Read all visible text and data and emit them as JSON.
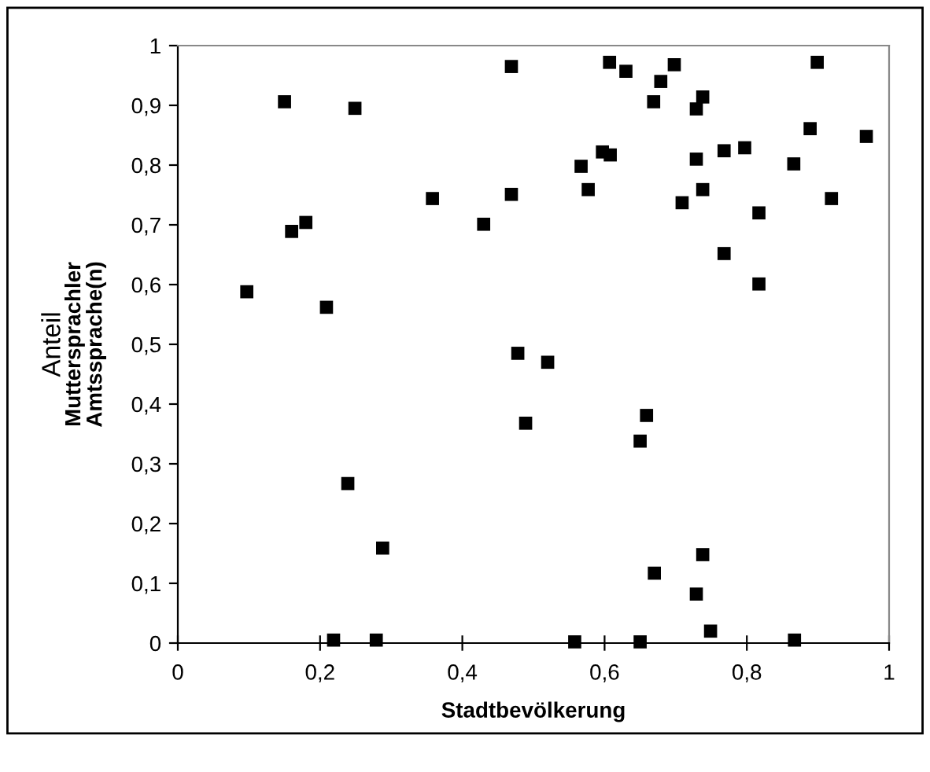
{
  "chart_data": {
    "type": "scatter",
    "xlabel": "Stadtbevölkerung",
    "ylabel": "Anteil\nMuttersprachler\nAmtssprache(n)",
    "x": [
      0.15,
      0.249,
      0.16,
      0.18,
      0.097,
      0.209,
      0.358,
      0.43,
      0.469,
      0.469,
      0.478,
      0.607,
      0.63,
      0.698,
      0.679,
      0.669,
      0.738,
      0.729,
      0.899,
      0.889,
      0.968,
      0.597,
      0.608,
      0.567,
      0.577,
      0.729,
      0.768,
      0.797,
      0.866,
      0.738,
      0.709,
      0.919,
      0.817,
      0.768,
      0.817,
      0.52,
      0.489,
      0.239,
      0.288,
      0.219,
      0.279,
      0.659,
      0.65,
      0.738,
      0.67,
      0.729,
      0.749,
      0.558,
      0.65,
      0.867
    ],
    "values": [
      0.906,
      0.895,
      0.689,
      0.704,
      0.588,
      0.562,
      0.744,
      0.701,
      0.965,
      0.751,
      0.485,
      0.972,
      0.957,
      0.968,
      0.94,
      0.906,
      0.914,
      0.894,
      0.972,
      0.861,
      0.848,
      0.822,
      0.817,
      0.798,
      0.759,
      0.81,
      0.824,
      0.829,
      0.802,
      0.759,
      0.737,
      0.744,
      0.72,
      0.652,
      0.601,
      0.47,
      0.368,
      0.267,
      0.159,
      0.005,
      0.005,
      0.381,
      0.338,
      0.148,
      0.117,
      0.082,
      0.02,
      0.002,
      0.002,
      0.005
    ],
    "color": "#000000",
    "marker": "square",
    "grid": false,
    "legend": false,
    "xlim": [
      0,
      1
    ],
    "ylim": [
      0,
      1
    ],
    "xticks": [
      0,
      {
        "value": 0.2,
        "label": "0,2"
      },
      {
        "value": 0.4,
        "label": "0,4"
      },
      {
        "value": 0.6,
        "label": "0,6"
      },
      {
        "value": 0.8,
        "label": "0,8"
      },
      1
    ],
    "yticks": [
      0,
      {
        "value": 0.1,
        "label": "0,1"
      },
      {
        "value": 0.2,
        "label": "0,2"
      },
      {
        "value": 0.3,
        "label": "0,3"
      },
      {
        "value": 0.4,
        "label": "0,4"
      },
      {
        "value": 0.5,
        "label": "0,5"
      },
      {
        "value": 0.6,
        "label": "0,6"
      },
      {
        "value": 0.7,
        "label": "0,7"
      },
      {
        "value": 0.8,
        "label": "0,8"
      },
      {
        "value": 0.9,
        "label": "0,9"
      },
      1
    ]
  }
}
